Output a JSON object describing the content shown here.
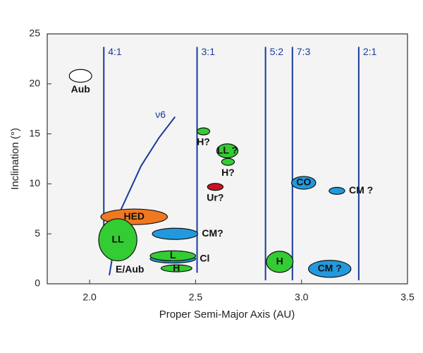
{
  "chart_data": {
    "type": "region-map",
    "x_label": "Proper Semi-Major Axis (AU)",
    "y_label": "Inclination (°)",
    "xlim": [
      1.8,
      3.5
    ],
    "ylim": [
      0,
      25
    ],
    "xticks": [
      {
        "value": 2,
        "label": "2.0"
      },
      {
        "value": 2.5,
        "label": "2.5"
      },
      {
        "value": 3,
        "label": "3.0"
      },
      {
        "value": 3.5,
        "label": "3.5"
      }
    ],
    "yticks": [
      0,
      5,
      10,
      15,
      20,
      25
    ],
    "resonances": [
      {
        "label": "4:1",
        "a": 2.067,
        "imin": 4.4,
        "imax": 23.7
      },
      {
        "label": "3:1",
        "a": 2.507,
        "imin": 1.1,
        "imax": 23.7
      },
      {
        "label": "5:2",
        "a": 2.83,
        "imin": 0.35,
        "imax": 23.7
      },
      {
        "label": "7:3",
        "a": 2.957,
        "imin": 0.35,
        "imax": 23.7
      },
      {
        "label": "2:1",
        "a": 3.27,
        "imin": 0.35,
        "imax": 23.7
      }
    ],
    "secular": {
      "label": "ν6",
      "a": [
        2.093,
        2.143,
        2.243,
        2.327,
        2.403
      ],
      "i": [
        0.85,
        7.2,
        11.8,
        14.6,
        16.7
      ]
    },
    "regions": [
      {
        "label": "Aub",
        "x": 1.957,
        "y": 20.8,
        "rx": 0.053,
        "ry": 0.64,
        "color": "#ffffff",
        "label_side": "below"
      },
      {
        "label": "H?",
        "x": 2.537,
        "y": 15.25,
        "rx": 0.03,
        "ry": 0.35,
        "color": "#33cc33",
        "label_side": "below"
      },
      {
        "label": "LL ?",
        "x": 2.65,
        "y": 13.3,
        "rx": 0.05,
        "ry": 0.7,
        "color": "#33cc33",
        "label_side": "inside"
      },
      {
        "label": "H?",
        "x": 2.653,
        "y": 12.2,
        "rx": 0.03,
        "ry": 0.35,
        "color": "#33cc33",
        "label_side": "below"
      },
      {
        "label": "Ur?",
        "x": 2.593,
        "y": 9.7,
        "rx": 0.037,
        "ry": 0.35,
        "color": "#cc1122",
        "label_side": "below"
      },
      {
        "label": "CO",
        "x": 3.01,
        "y": 10.1,
        "rx": 0.057,
        "ry": 0.64,
        "color": "#2299dd",
        "label_side": "inside"
      },
      {
        "label": "CM ?",
        "x": 3.167,
        "y": 9.3,
        "rx": 0.037,
        "ry": 0.35,
        "color": "#2299dd",
        "label_side": "right"
      },
      {
        "label": "HED",
        "x": 2.21,
        "y": 6.7,
        "rx": 0.157,
        "ry": 0.78,
        "color": "#f07820",
        "label_side": "inside"
      },
      {
        "label": "LL",
        "x": 2.133,
        "y": 4.4,
        "rx": 0.09,
        "ry": 2.1,
        "color": "#33cc33",
        "label_side": "inside"
      },
      {
        "label": "CM?",
        "x": 2.403,
        "y": 5.0,
        "rx": 0.107,
        "ry": 0.56,
        "color": "#2299dd",
        "label_side": "right"
      },
      {
        "label": "Cl",
        "x": 2.393,
        "y": 2.5,
        "rx": 0.107,
        "ry": 0.42,
        "color": "#2299dd",
        "label_side": "right"
      },
      {
        "label": "L",
        "x": 2.393,
        "y": 2.8,
        "rx": 0.107,
        "ry": 0.5,
        "color": "#33cc33",
        "label_side": "inside"
      },
      {
        "label": "H",
        "x": 2.41,
        "y": 1.55,
        "rx": 0.073,
        "ry": 0.35,
        "color": "#33cc33",
        "label_side": "inside"
      },
      {
        "label": "H",
        "x": 2.897,
        "y": 2.2,
        "rx": 0.063,
        "ry": 1.06,
        "color": "#33cc33",
        "label_side": "inside"
      },
      {
        "label": "CM ?",
        "x": 3.133,
        "y": 1.5,
        "rx": 0.1,
        "ry": 0.85,
        "color": "#2299dd",
        "label_side": "inside"
      }
    ],
    "annotations": [
      {
        "text": "E/Aub",
        "x": 2.19,
        "y": 1.4
      }
    ]
  }
}
